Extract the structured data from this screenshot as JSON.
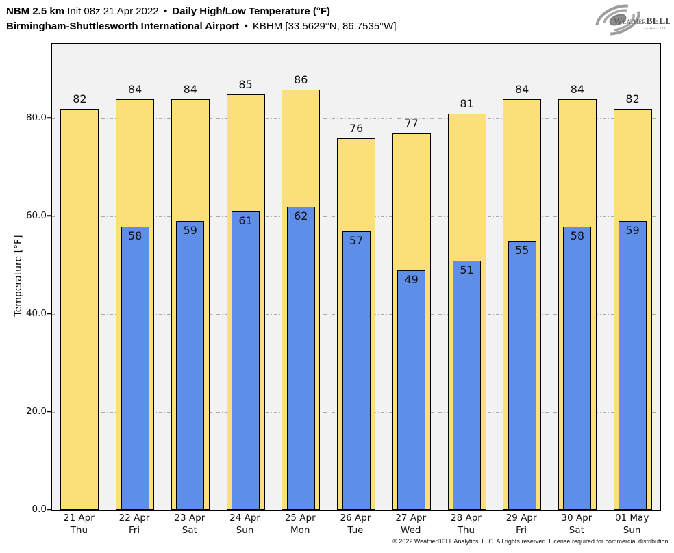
{
  "header": {
    "model": "NBM 2.5 km",
    "init": "Init 08z 21 Apr 2022",
    "sep": "•",
    "product": "Daily High/Low Temperature (°F)",
    "station_name": "Birmingham-Shuttlesworth International Airport",
    "station_id": "KBHM [33.5629°N, 86.7535°W]"
  },
  "logo": {
    "word_w": "W",
    "word_eather": "EATHER",
    "word_bell": "BELL",
    "tagline": "Analytics LLC"
  },
  "chart_data": {
    "type": "bar",
    "title": "Daily High/Low Temperature (°F)",
    "ylabel": "Temperature [°F]",
    "ylim": [
      0,
      95.3
    ],
    "yticks": [
      0,
      20,
      40,
      60,
      80
    ],
    "ytick_labels": [
      "0.0",
      "20.0",
      "40.0",
      "60.0",
      "80.0"
    ],
    "grid": "horizontal dash-dot at 20/40/60/80",
    "legend_position": "none",
    "categories": [
      "21 Apr",
      "22 Apr",
      "23 Apr",
      "24 Apr",
      "25 Apr",
      "26 Apr",
      "27 Apr",
      "28 Apr",
      "29 Apr",
      "30 Apr",
      "01 May"
    ],
    "weekdays": [
      "Thu",
      "Fri",
      "Sat",
      "Sun",
      "Mon",
      "Tue",
      "Wed",
      "Thu",
      "Fri",
      "Sat",
      "Sun"
    ],
    "series": [
      {
        "name": "High",
        "color": "#fbdf77",
        "values": [
          82,
          84,
          84,
          85,
          86,
          76,
          77,
          81,
          84,
          84,
          82
        ]
      },
      {
        "name": "Low",
        "color": "#5f8ee8",
        "values": [
          null,
          58,
          59,
          61,
          62,
          57,
          49,
          51,
          55,
          58,
          59
        ]
      }
    ],
    "colors": {
      "plot_background": "#f2f2f2",
      "bar_outline": "#000000",
      "gridline": "#a9a9a9"
    }
  },
  "footer": {
    "copyright": "© 2022 WeatherBELL Analytics, LLC. All rights reserved. License required for commercial distribution."
  }
}
